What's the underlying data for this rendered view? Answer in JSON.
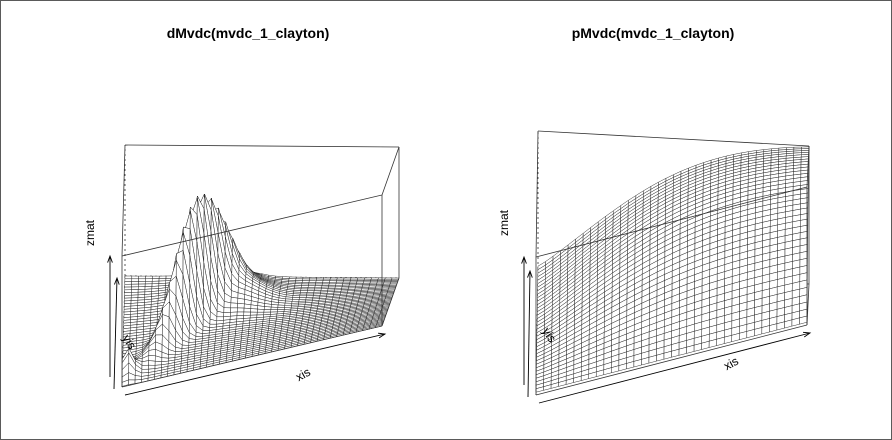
{
  "chart_data": [
    {
      "type": "surface",
      "title": "dMvdc(mvdc_1_clayton)",
      "xlabel": "xis",
      "ylabel": "yis",
      "zlabel": "zmat"
    },
    {
      "type": "surface",
      "title": "pMvdc(mvdc_1_clayton)",
      "xlabel": "xis",
      "ylabel": "yis",
      "zlabel": "zmat"
    }
  ]
}
